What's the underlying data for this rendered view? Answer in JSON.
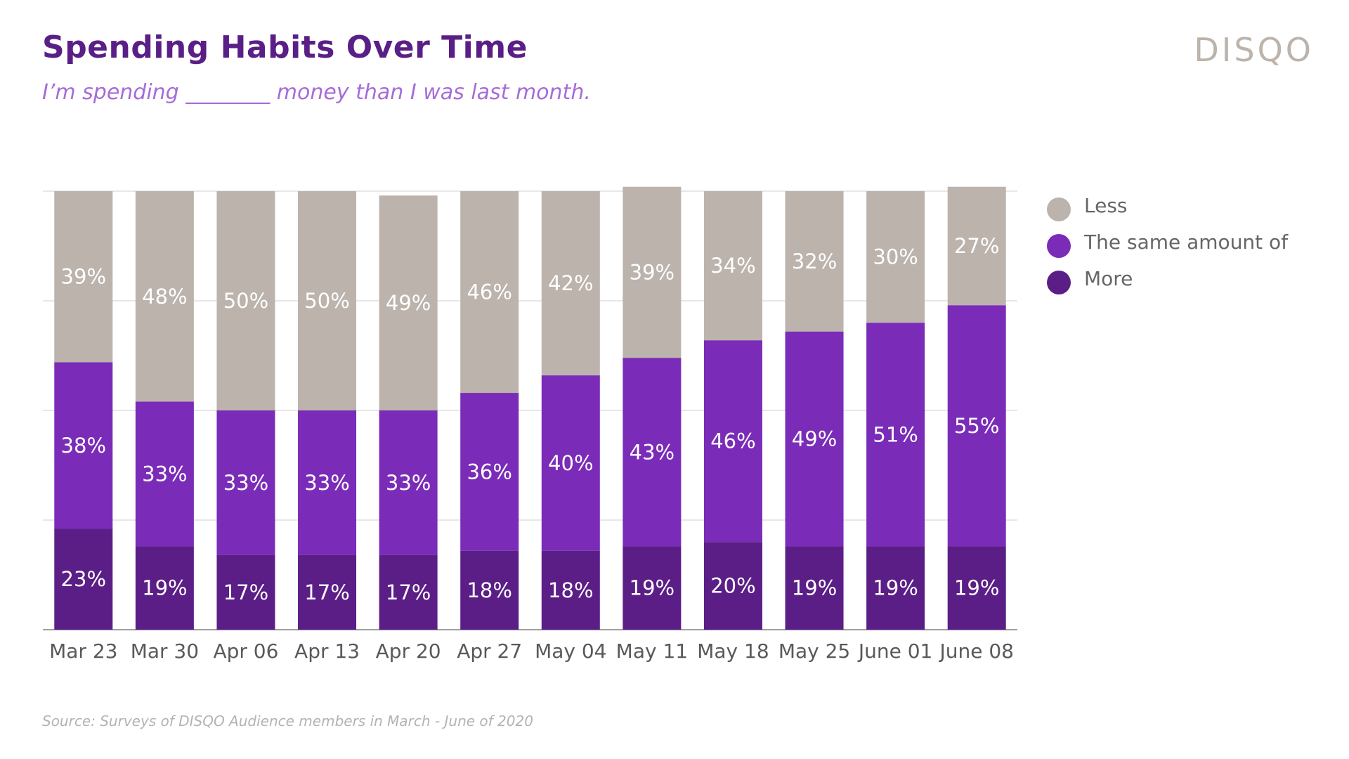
{
  "header": {
    "title": "Spending Habits Over Time",
    "subtitle": "I’m spending ________ money than I was last month.",
    "logo": "DISQO"
  },
  "footer": {
    "source": "Source: Surveys of DISQO Audience members in March - June of 2020"
  },
  "colors": {
    "less": "#bbb3ac",
    "same": "#7a2bb7",
    "more": "#5b1e86",
    "grid": "#cfcfcf",
    "axis": "#808080"
  },
  "chart_data": {
    "type": "bar",
    "stacked": true,
    "title": "Spending Habits Over Time",
    "categories": [
      "Mar 23",
      "Mar 30",
      "Apr 06",
      "Apr 13",
      "Apr 20",
      "Apr 27",
      "May 04",
      "May 11",
      "May 18",
      "May 25",
      "June 01",
      "June 08"
    ],
    "series": [
      {
        "name": "More",
        "color": "#5b1e86",
        "values": [
          23,
          19,
          17,
          17,
          17,
          18,
          18,
          19,
          20,
          19,
          19,
          19
        ]
      },
      {
        "name": "The same amount of",
        "color": "#7a2bb7",
        "values": [
          38,
          33,
          33,
          33,
          33,
          36,
          40,
          43,
          46,
          49,
          51,
          55
        ]
      },
      {
        "name": "Less",
        "color": "#bbb3ac",
        "values": [
          39,
          48,
          50,
          50,
          49,
          46,
          42,
          39,
          34,
          32,
          30,
          27
        ]
      }
    ],
    "legend": [
      "Less",
      "The same amount of",
      "More"
    ],
    "legend_position": "right",
    "ylim": [
      0,
      100
    ],
    "grid": true,
    "value_suffix": "%"
  }
}
